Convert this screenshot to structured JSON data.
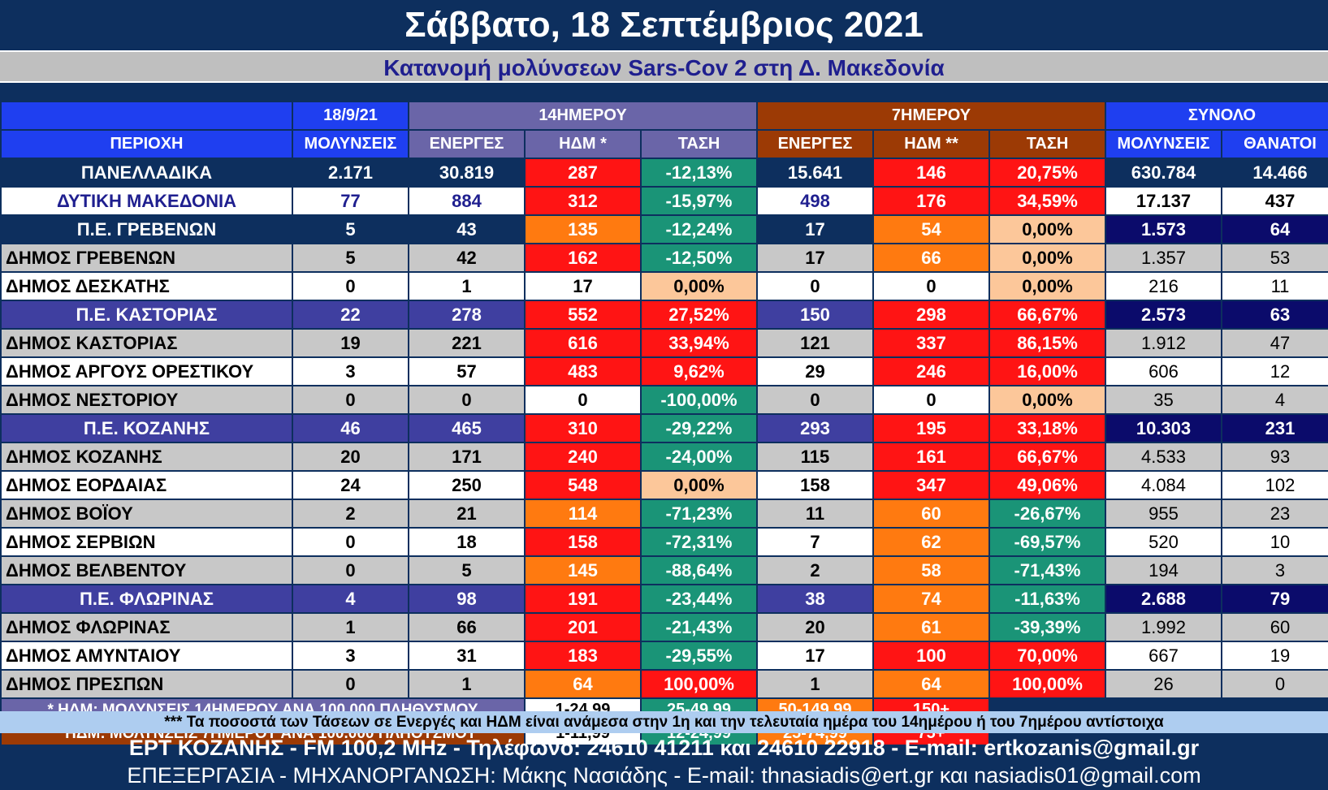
{
  "title": "Σάββατο, 18 Σεπτέμβριος 2021",
  "subtitle": "Κατανομή μολύνσεων Sars-Cov 2 στη Δ. Μακεδονία",
  "colors": {
    "background": "#0d2f5e",
    "header_blue": "#1f3ff0",
    "header_14day": "#6a65a8",
    "header_7day": "#9c3a05",
    "high": "#ff1414",
    "medium": "#ff7a10",
    "low": "#1a9477",
    "neutral": "#fcc79a",
    "regional_unit_row": "#3f3fa0"
  },
  "header": {
    "date": "18/9/21",
    "group_14": "14ΗΜΕΡΟΥ",
    "group_7": "7ΗΜΕΡΟΥ",
    "group_total": "ΣΥΝΟΛΟ",
    "region": "ΠΕΡΙΟΧΗ",
    "infections": "ΜΟΛΥΝΣΕΙΣ",
    "active14": "ΕΝΕΡΓΕΣ",
    "hdm14": "ΗΔΜ *",
    "trend14": "ΤΑΣΗ",
    "active7": "ΕΝΕΡΓΕΣ",
    "hdm7": "ΗΔΜ **",
    "trend7": "ΤΑΣΗ",
    "total_infections": "ΜΟΛΥΝΣΕΙΣ",
    "deaths": "ΘΑΝΑΤΟΙ"
  },
  "rows": [
    {
      "name": "ΠΑΝΕΛΛΑΔΙΚΑ",
      "v": [
        "2.171",
        "30.819",
        "287",
        "-12,13%",
        "15.641",
        "146",
        "20,75%",
        "630.784",
        "14.466"
      ]
    },
    {
      "name": "ΔΥΤΙΚΗ ΜΑΚΕΔΟΝΙΑ",
      "v": [
        "77",
        "884",
        "312",
        "-15,97%",
        "498",
        "176",
        "34,59%",
        "17.137",
        "437"
      ]
    },
    {
      "name": "Π.Ε. ΓΡΕΒΕΝΩΝ",
      "v": [
        "5",
        "43",
        "135",
        "-12,24%",
        "17",
        "54",
        "0,00%",
        "1.573",
        "64"
      ]
    },
    {
      "name": "ΔΗΜΟΣ ΓΡΕΒΕΝΩΝ",
      "v": [
        "5",
        "42",
        "162",
        "-12,50%",
        "17",
        "66",
        "0,00%",
        "1.357",
        "53"
      ]
    },
    {
      "name": "ΔΗΜΟΣ ΔΕΣΚΑΤΗΣ",
      "v": [
        "0",
        "1",
        "17",
        "0,00%",
        "0",
        "0",
        "0,00%",
        "216",
        "11"
      ]
    },
    {
      "name": "Π.Ε. ΚΑΣΤΟΡΙΑΣ",
      "v": [
        "22",
        "278",
        "552",
        "27,52%",
        "150",
        "298",
        "66,67%",
        "2.573",
        "63"
      ]
    },
    {
      "name": "ΔΗΜΟΣ ΚΑΣΤΟΡΙΑΣ",
      "v": [
        "19",
        "221",
        "616",
        "33,94%",
        "121",
        "337",
        "86,15%",
        "1.912",
        "47"
      ]
    },
    {
      "name": "ΔΗΜΟΣ ΑΡΓΟΥΣ ΟΡΕΣΤΙΚΟΥ",
      "v": [
        "3",
        "57",
        "483",
        "9,62%",
        "29",
        "246",
        "16,00%",
        "606",
        "12"
      ]
    },
    {
      "name": "ΔΗΜΟΣ ΝΕΣΤΟΡΙΟΥ",
      "v": [
        "0",
        "0",
        "0",
        "-100,00%",
        "0",
        "0",
        "0,00%",
        "35",
        "4"
      ]
    },
    {
      "name": "Π.Ε. ΚΟΖΑΝΗΣ",
      "v": [
        "46",
        "465",
        "310",
        "-29,22%",
        "293",
        "195",
        "33,18%",
        "10.303",
        "231"
      ]
    },
    {
      "name": "ΔΗΜΟΣ ΚΟΖΑΝΗΣ",
      "v": [
        "20",
        "171",
        "240",
        "-24,00%",
        "115",
        "161",
        "66,67%",
        "4.533",
        "93"
      ]
    },
    {
      "name": "ΔΗΜΟΣ ΕΟΡΔΑΙΑΣ",
      "v": [
        "24",
        "250",
        "548",
        "0,00%",
        "158",
        "347",
        "49,06%",
        "4.084",
        "102"
      ]
    },
    {
      "name": "ΔΗΜΟΣ ΒΟΪΟΥ",
      "v": [
        "2",
        "21",
        "114",
        "-71,23%",
        "11",
        "60",
        "-26,67%",
        "955",
        "23"
      ]
    },
    {
      "name": "ΔΗΜΟΣ ΣΕΡΒΙΩΝ",
      "v": [
        "0",
        "18",
        "158",
        "-72,31%",
        "7",
        "62",
        "-69,57%",
        "520",
        "10"
      ]
    },
    {
      "name": "ΔΗΜΟΣ ΒΕΛΒΕΝΤΟΥ",
      "v": [
        "0",
        "5",
        "145",
        "-88,64%",
        "2",
        "58",
        "-71,43%",
        "194",
        "3"
      ]
    },
    {
      "name": "Π.Ε. ΦΛΩΡΙΝΑΣ",
      "v": [
        "4",
        "98",
        "191",
        "-23,44%",
        "38",
        "74",
        "-11,63%",
        "2.688",
        "79"
      ]
    },
    {
      "name": "ΔΗΜΟΣ ΦΛΩΡΙΝΑΣ",
      "v": [
        "1",
        "66",
        "201",
        "-21,43%",
        "20",
        "61",
        "-39,39%",
        "1.992",
        "60"
      ]
    },
    {
      "name": "ΔΗΜΟΣ ΑΜΥΝΤΑΙΟΥ",
      "v": [
        "3",
        "31",
        "183",
        "-29,55%",
        "17",
        "100",
        "70,00%",
        "667",
        "19"
      ]
    },
    {
      "name": "ΔΗΜΟΣ ΠΡΕΣΠΩΝ",
      "v": [
        "0",
        "1",
        "64",
        "100,00%",
        "1",
        "64",
        "100,00%",
        "26",
        "0"
      ]
    }
  ],
  "legend": {
    "label14": "* ΗΔΜ: ΜΟΛΥΝΣΕΙΣ 14ΗΜΕΡΟΥ ΑΝΑ 100.000 ΠΛΗΘΥΣΜΟΥ",
    "ranges14": [
      "1-24,99",
      "25-49,99",
      "50-149,99",
      "150+"
    ],
    "label7": "** ΗΔΜ: ΜΟΛΥΝΣΕΙΣ 7ΗΜΕΡΟΥ ΑΝΑ 100.000 ΠΛΗΘΥΣΜΟΥ",
    "ranges7": [
      "1-11,99",
      "12-24,99",
      "25-74,99",
      "75+"
    ]
  },
  "note": "*** Τα ποσοστά των Τάσεων σε Ενεργές και ΗΔΜ είναι ανάμεσα στην 1η και την τελευταία ημέρα του 14ημέρου ή του 7ημέρου αντίστοιχα",
  "contact1": "ΕΡΤ ΚΟΖΑΝΗΣ - FM 100,2 MHz - Τηλέφωνο:  24610 41211 και 24610 22918 - E-mail: ertkozanis@gmail.gr",
  "contact2": "ΕΠΕΞΕΡΓΑΣΙΑ  -  ΜΗΧΑΝΟΡΓΑΝΩΣΗ: Μάκης Νασιάδης  -   E-mail: thnasiadis@ert.gr και nasiadis01@gmail.com"
}
